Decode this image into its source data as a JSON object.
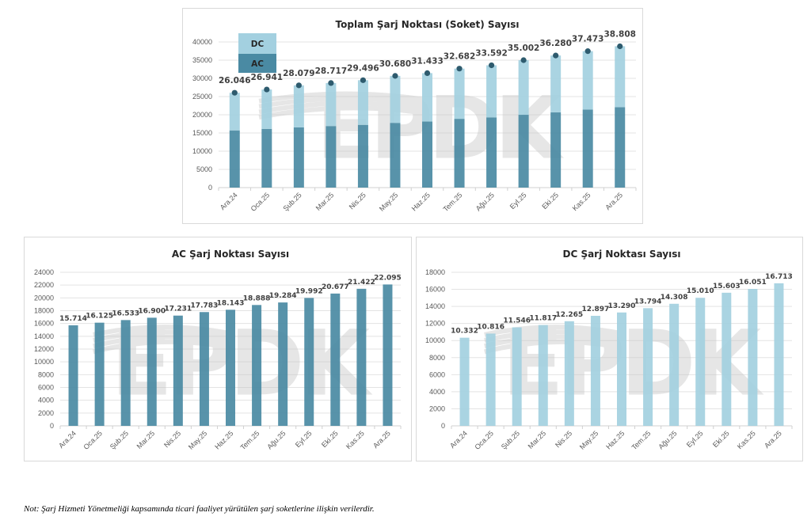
{
  "note": "Not: Şarj Hizmeti Yönetmeliği kapsamında ticari faaliyet yürütülen şarj soketlerine ilişkin verilerdir.",
  "watermark": "EPDK",
  "colors": {
    "ac": "#4a8aa3",
    "dc": "#a3d0e0",
    "dot": "#2e5b6e",
    "grid": "#e3e3e3",
    "watermark": "#c8c8c8"
  },
  "chart_data": [
    {
      "id": "total",
      "type": "bar",
      "stacked": true,
      "title": "Toplam Şarj Noktası (Soket) Sayısı",
      "xlabel": "",
      "ylabel": "",
      "ylim": [
        0,
        40000
      ],
      "yticks": [
        0,
        5000,
        10000,
        15000,
        20000,
        25000,
        30000,
        35000,
        40000
      ],
      "grid": true,
      "legend": {
        "placement": "top-left",
        "entries": [
          "DC",
          "AC"
        ]
      },
      "categories": [
        "Ara.24",
        "Oca.25",
        "Şub.25",
        "Mar.25",
        "Nis.25",
        "May.25",
        "Haz.25",
        "Tem.25",
        "Ağu.25",
        "Eyl.25",
        "Eki.25",
        "Kas.25",
        "Ara.25"
      ],
      "series": [
        {
          "name": "AC",
          "values": [
            15714,
            16125,
            16533,
            16900,
            17231,
            17783,
            18143,
            18888,
            19284,
            19992,
            20677,
            21422,
            22095
          ]
        },
        {
          "name": "DC",
          "values": [
            10332,
            10816,
            11546,
            11817,
            12265,
            12897,
            13290,
            13794,
            14308,
            15010,
            15603,
            16051,
            16713
          ]
        }
      ],
      "totals": [
        26046,
        26941,
        28079,
        28717,
        29496,
        30680,
        31433,
        32682,
        33592,
        35002,
        36280,
        37473,
        38808
      ],
      "total_labels": [
        "26.046",
        "26.941",
        "28.079",
        "28.717",
        "29.496",
        "30.680",
        "31.433",
        "32.682",
        "33.592",
        "35.002",
        "36.280",
        "37.473",
        "38.808"
      ]
    },
    {
      "id": "ac",
      "type": "bar",
      "title": "AC Şarj Noktası Sayısı",
      "xlabel": "",
      "ylabel": "",
      "ylim": [
        0,
        24000
      ],
      "yticks": [
        0,
        2000,
        4000,
        6000,
        8000,
        10000,
        12000,
        14000,
        16000,
        18000,
        20000,
        22000,
        24000
      ],
      "grid": true,
      "categories": [
        "Ara.24",
        "Oca.25",
        "Şub.25",
        "Mar.25",
        "Nis.25",
        "May.25",
        "Haz.25",
        "Tem.25",
        "Ağu.25",
        "Eyl.25",
        "Eki.25",
        "Kas.25",
        "Ara.25"
      ],
      "values": [
        15714,
        16125,
        16533,
        16900,
        17231,
        17783,
        18143,
        18888,
        19284,
        19992,
        20677,
        21422,
        22095
      ],
      "labels": [
        "15.714",
        "16.125",
        "16.533",
        "16.900",
        "17.231",
        "17.783",
        "18.143",
        "18.888",
        "19.284",
        "19.992",
        "20.677",
        "21.422",
        "22.095"
      ]
    },
    {
      "id": "dc",
      "type": "bar",
      "title": "DC Şarj Noktası Sayısı",
      "xlabel": "",
      "ylabel": "",
      "ylim": [
        0,
        18000
      ],
      "yticks": [
        0,
        2000,
        4000,
        6000,
        8000,
        10000,
        12000,
        14000,
        16000,
        18000
      ],
      "grid": true,
      "categories": [
        "Ara.24",
        "Oca.25",
        "Şub.25",
        "Mar.25",
        "Nis.25",
        "May.25",
        "Haz.25",
        "Tem.25",
        "Ağu.25",
        "Eyl.25",
        "Eki.25",
        "Kas.25",
        "Ara.25"
      ],
      "values": [
        10332,
        10816,
        11546,
        11817,
        12265,
        12897,
        13290,
        13794,
        14308,
        15010,
        15603,
        16051,
        16713
      ],
      "labels": [
        "10.332",
        "10.816",
        "11.546",
        "11.817",
        "12.265",
        "12.897",
        "13.290",
        "13.794",
        "14.308",
        "15.010",
        "15.603",
        "16.051",
        "16.713"
      ]
    }
  ]
}
